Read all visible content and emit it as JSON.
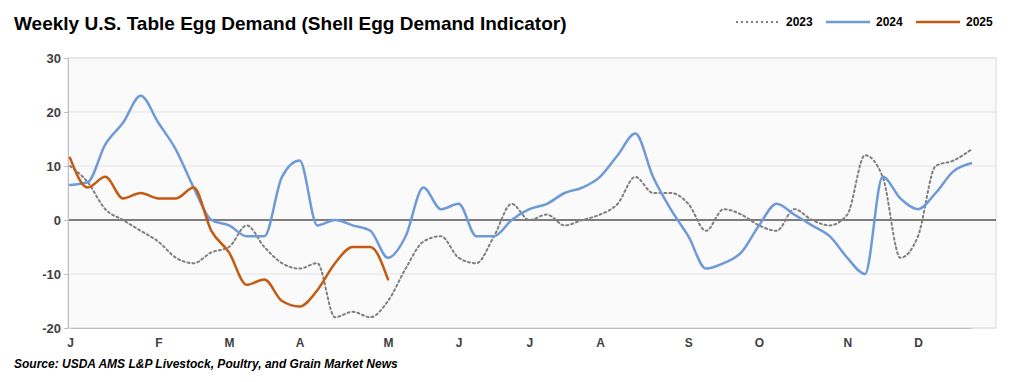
{
  "chart_data": {
    "type": "line",
    "title": "Weekly U.S. Table Egg Demand (Shell Egg Demand Indicator)",
    "source": "Source: USDA AMS L&P Livestock, Poultry, and Grain Market News",
    "categories": [
      "J",
      null,
      null,
      null,
      null,
      "F",
      null,
      null,
      null,
      "M",
      null,
      null,
      null,
      "A",
      null,
      null,
      null,
      null,
      "M",
      null,
      null,
      null,
      "J",
      null,
      null,
      null,
      "J",
      null,
      null,
      null,
      "A",
      null,
      null,
      null,
      null,
      "S",
      null,
      null,
      null,
      "O",
      null,
      null,
      null,
      null,
      "N",
      null,
      null,
      null,
      "D",
      null,
      null,
      null
    ],
    "series": [
      {
        "name": "2023",
        "color": "#7f7f7f",
        "line_style": "dotted",
        "values": [
          10,
          7,
          2,
          0,
          -2,
          -4,
          -7,
          -8,
          -6,
          -5,
          -1,
          -5,
          -8,
          -9,
          -8,
          -18,
          -17,
          -18,
          -15,
          -9,
          -4,
          -3,
          -7,
          -8,
          -3,
          3,
          0,
          1,
          -1,
          0,
          1,
          3,
          8,
          5,
          5,
          3,
          -2,
          2,
          1,
          -1,
          -2,
          2,
          0,
          -1,
          1,
          12,
          8,
          -7,
          -3,
          10,
          11,
          13
        ]
      },
      {
        "name": "2024",
        "color": "#6f9ad8",
        "line_style": "solid",
        "values": [
          6.5,
          7,
          14,
          18,
          23,
          18,
          13,
          6,
          0,
          -1,
          -3,
          -3,
          8,
          11,
          -1,
          0,
          -1,
          -2,
          -7,
          -3,
          6,
          2,
          3,
          -3,
          -3,
          0,
          2,
          3,
          5,
          6,
          8,
          12,
          16,
          8,
          2,
          -3,
          -9,
          -8,
          -6,
          -1,
          3,
          1,
          -1,
          -3,
          -7,
          -10,
          8,
          4,
          2,
          5,
          9,
          10.5
        ]
      },
      {
        "name": "2025",
        "color": "#c55a11",
        "line_style": "solid",
        "values": [
          11.5,
          6,
          8,
          4,
          5,
          4,
          4,
          6,
          -2,
          -6,
          -12,
          -11,
          -15,
          -16,
          -13,
          -8,
          -5,
          -5,
          -11,
          null,
          null,
          null,
          null,
          null,
          null,
          null,
          null,
          null,
          null,
          null,
          null,
          null,
          null,
          null,
          null,
          null,
          null,
          null,
          null,
          null,
          null,
          null,
          null,
          null,
          null,
          null,
          null,
          null,
          null,
          null,
          null,
          null
        ]
      }
    ],
    "ylim": [
      -20,
      30
    ],
    "yticks": [
      -20,
      -10,
      0,
      10,
      20,
      30
    ],
    "grid": true,
    "legend": "top-right"
  }
}
